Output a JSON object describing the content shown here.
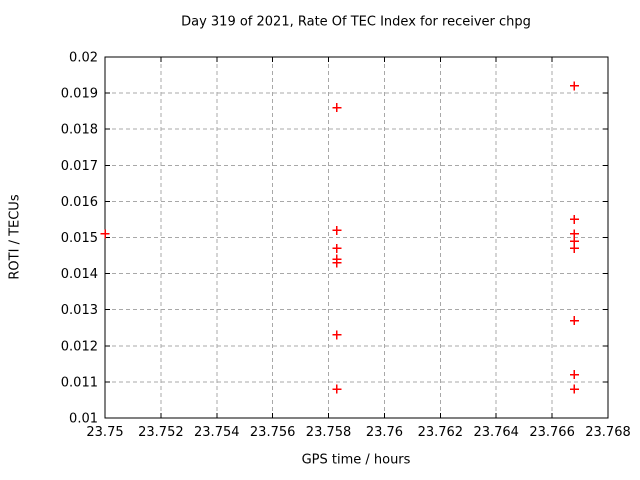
{
  "chart_data": {
    "type": "scatter",
    "title": "Day 319 of 2021, Rate Of TEC Index for receiver chpg",
    "xlabel": "GPS time / hours",
    "ylabel": "ROTI / TECUs",
    "xlim": [
      23.75,
      23.768
    ],
    "ylim": [
      0.01,
      0.02
    ],
    "x_ticks": [
      23.75,
      23.752,
      23.754,
      23.756,
      23.758,
      23.76,
      23.762,
      23.764,
      23.766,
      23.768
    ],
    "x_tick_labels": [
      "23.75",
      "23.752",
      "23.754",
      "23.756",
      "23.758",
      "23.76",
      "23.762",
      "23.764",
      "23.766",
      "23.768"
    ],
    "y_ticks": [
      0.01,
      0.011,
      0.012,
      0.013,
      0.014,
      0.015,
      0.016,
      0.017,
      0.018,
      0.019,
      0.02
    ],
    "y_tick_labels": [
      "0.01",
      "0.011",
      "0.012",
      "0.013",
      "0.014",
      "0.015",
      "0.016",
      "0.017",
      "0.018",
      "0.019",
      "0.02"
    ],
    "grid": true,
    "legend": "none",
    "marker": "plus",
    "marker_size": 9,
    "colors": {
      "marker": "#ff0000",
      "grid": "#a8a8a8",
      "axis": "#000000",
      "text": "#000000",
      "background": "#ffffff"
    },
    "series": [
      {
        "name": "ROTI",
        "points": [
          {
            "x": 23.75,
            "y": 0.0151
          },
          {
            "x": 23.7583,
            "y": 0.0186
          },
          {
            "x": 23.7583,
            "y": 0.0152
          },
          {
            "x": 23.7583,
            "y": 0.0147
          },
          {
            "x": 23.7583,
            "y": 0.0144
          },
          {
            "x": 23.7583,
            "y": 0.0143
          },
          {
            "x": 23.7583,
            "y": 0.0123
          },
          {
            "x": 23.7583,
            "y": 0.0108
          },
          {
            "x": 23.7668,
            "y": 0.0192
          },
          {
            "x": 23.7668,
            "y": 0.0155
          },
          {
            "x": 23.7668,
            "y": 0.0151
          },
          {
            "x": 23.7668,
            "y": 0.0149
          },
          {
            "x": 23.7668,
            "y": 0.0147
          },
          {
            "x": 23.7668,
            "y": 0.0127
          },
          {
            "x": 23.7668,
            "y": 0.0112
          },
          {
            "x": 23.7668,
            "y": 0.0108
          }
        ]
      }
    ]
  }
}
